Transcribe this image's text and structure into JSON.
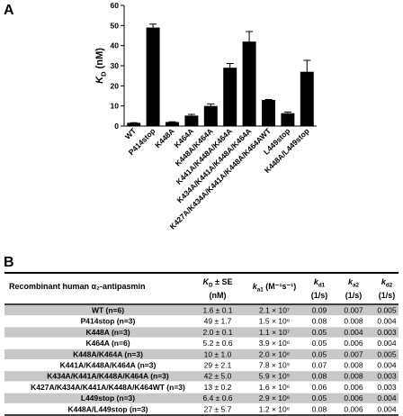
{
  "chart_data": {
    "type": "bar",
    "panel": "A",
    "ylabel": {
      "sym": "K",
      "sub": "D",
      "text": " (nM)"
    },
    "categories": [
      "WT",
      "P414stop",
      "K448A",
      "K464A",
      "K448A/K464A",
      "K441A/K448A/K464A",
      "K434A/K441A/K448A/K464A",
      "K427A/K434A/K441A/K448A/K464AWT",
      "L449stop",
      "K448A/L449stop"
    ],
    "values": [
      1.6,
      49,
      2.0,
      5.2,
      10,
      29,
      42,
      13,
      6.4,
      27
    ],
    "errors": [
      0.1,
      1.7,
      0.1,
      0.6,
      1.0,
      2.1,
      5.0,
      0.2,
      0.6,
      5.7
    ],
    "color": "#000000",
    "ylim": [
      0,
      60
    ],
    "yticks": [
      0,
      10,
      20,
      30,
      40,
      50,
      60
    ]
  },
  "table": {
    "panel": "B",
    "header": [
      {
        "text": "Recombinant human α₂-antipasmin"
      },
      {
        "sym": "K",
        "sub": "D",
        "text": " ± SE",
        "unit": "(nM)"
      },
      {
        "sym": "k",
        "sub": "a1",
        "text": " (M⁻¹s⁻¹)"
      },
      {
        "sym": "k",
        "sub": "d1",
        "unit": "(1/s)"
      },
      {
        "sym": "k",
        "sub": "a2",
        "unit": "(1/s)"
      },
      {
        "sym": "k",
        "sub": "d2",
        "unit": "(1/s)"
      }
    ],
    "rows": [
      [
        "WT (n=6)",
        "1.6 ± 0.1",
        "2.1 × 10⁷",
        "0.09",
        "0.007",
        "0.005"
      ],
      [
        "P414stop (n=3)",
        "49 ± 1.7",
        "1.5 × 10⁶",
        "0.08",
        "0.008",
        "0.004"
      ],
      [
        "K448A (n=3)",
        "2.0 ± 0.1",
        "1.1 × 10⁷",
        "0.05",
        "0.004",
        "0.003"
      ],
      [
        "K464A (n=6)",
        "5.2 ± 0.6",
        "3.9 × 10⁶",
        "0.05",
        "0.006",
        "0.004"
      ],
      [
        "K448A/K464A (n=3)",
        "10 ± 1.0",
        "2.0 × 10⁶",
        "0.05",
        "0.007",
        "0.005"
      ],
      [
        "K441A/K448A/K464A (n=3)",
        "29 ± 2.1",
        "7.8 × 10⁵",
        "0.07",
        "0.008",
        "0.004"
      ],
      [
        "K434A/K441A/K448A/K464A (n=3)",
        "42 ± 5.0",
        "5.9 × 10⁵",
        "0.08",
        "0.008",
        "0.003"
      ],
      [
        "K427A/K434A/K441A/K448A/K464WT (n=3)",
        "13 ± 0.2",
        "1.6 × 10⁶",
        "0.06",
        "0.006",
        "0.003"
      ],
      [
        "L449stop (n=3)",
        "6.4 ± 0.6",
        "2.9 × 10⁶",
        "0.05",
        "0.006",
        "0.004"
      ],
      [
        "K448A/L449stop (n=3)",
        "27 ± 5.7",
        "1.2 × 10⁶",
        "0.08",
        "0.006",
        "0.004"
      ]
    ]
  }
}
